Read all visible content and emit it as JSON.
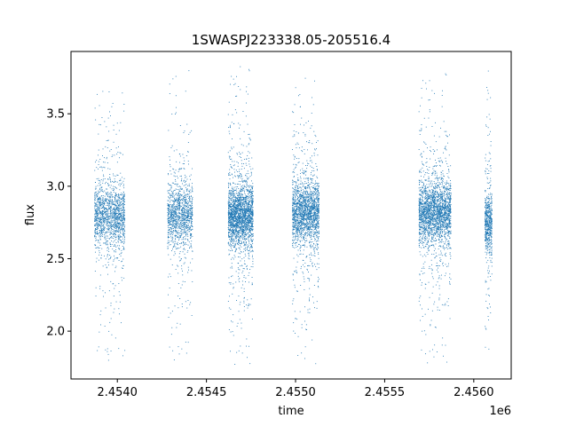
{
  "chart_data": {
    "type": "scatter",
    "title": "1SWASPJ223338.05-205516.4",
    "xlabel": "time",
    "ylabel": "flux",
    "x_offset_label": "1e6",
    "xlim": [
      2.45374,
      2.45621
    ],
    "ylim": [
      1.67,
      3.93
    ],
    "xticks": [
      2.454,
      2.4545,
      2.455,
      2.4555,
      2.456
    ],
    "xtick_labels": [
      "2.4540",
      "2.4545",
      "2.4550",
      "2.4555",
      "2.4560"
    ],
    "yticks": [
      2.0,
      2.5,
      3.0,
      3.5
    ],
    "ytick_labels": [
      "2.0",
      "2.5",
      "3.0",
      "3.5"
    ],
    "marker_color": "#1f77b4",
    "grid": false,
    "series": [
      {
        "observing_seasons": [
          {
            "x_start": 2.45387,
            "x_end": 2.45404,
            "flux_median": 2.8,
            "flux_min": 1.77,
            "flux_max": 3.72,
            "points": 1500
          },
          {
            "x_start": 2.45428,
            "x_end": 2.45442,
            "flux_median": 2.8,
            "flux_min": 1.8,
            "flux_max": 3.83,
            "points": 1200
          },
          {
            "x_start": 2.45462,
            "x_end": 2.45476,
            "flux_median": 2.8,
            "flux_min": 1.77,
            "flux_max": 3.83,
            "points": 2200
          },
          {
            "x_start": 2.45498,
            "x_end": 2.45513,
            "flux_median": 2.82,
            "flux_min": 1.77,
            "flux_max": 3.75,
            "points": 1900
          },
          {
            "x_start": 2.45569,
            "x_end": 2.45587,
            "flux_median": 2.82,
            "flux_min": 1.78,
            "flux_max": 3.8,
            "points": 2300
          },
          {
            "x_start": 2.45606,
            "x_end": 2.4561,
            "flux_median": 2.75,
            "flux_min": 1.8,
            "flux_max": 3.8,
            "points": 600
          }
        ]
      }
    ]
  }
}
